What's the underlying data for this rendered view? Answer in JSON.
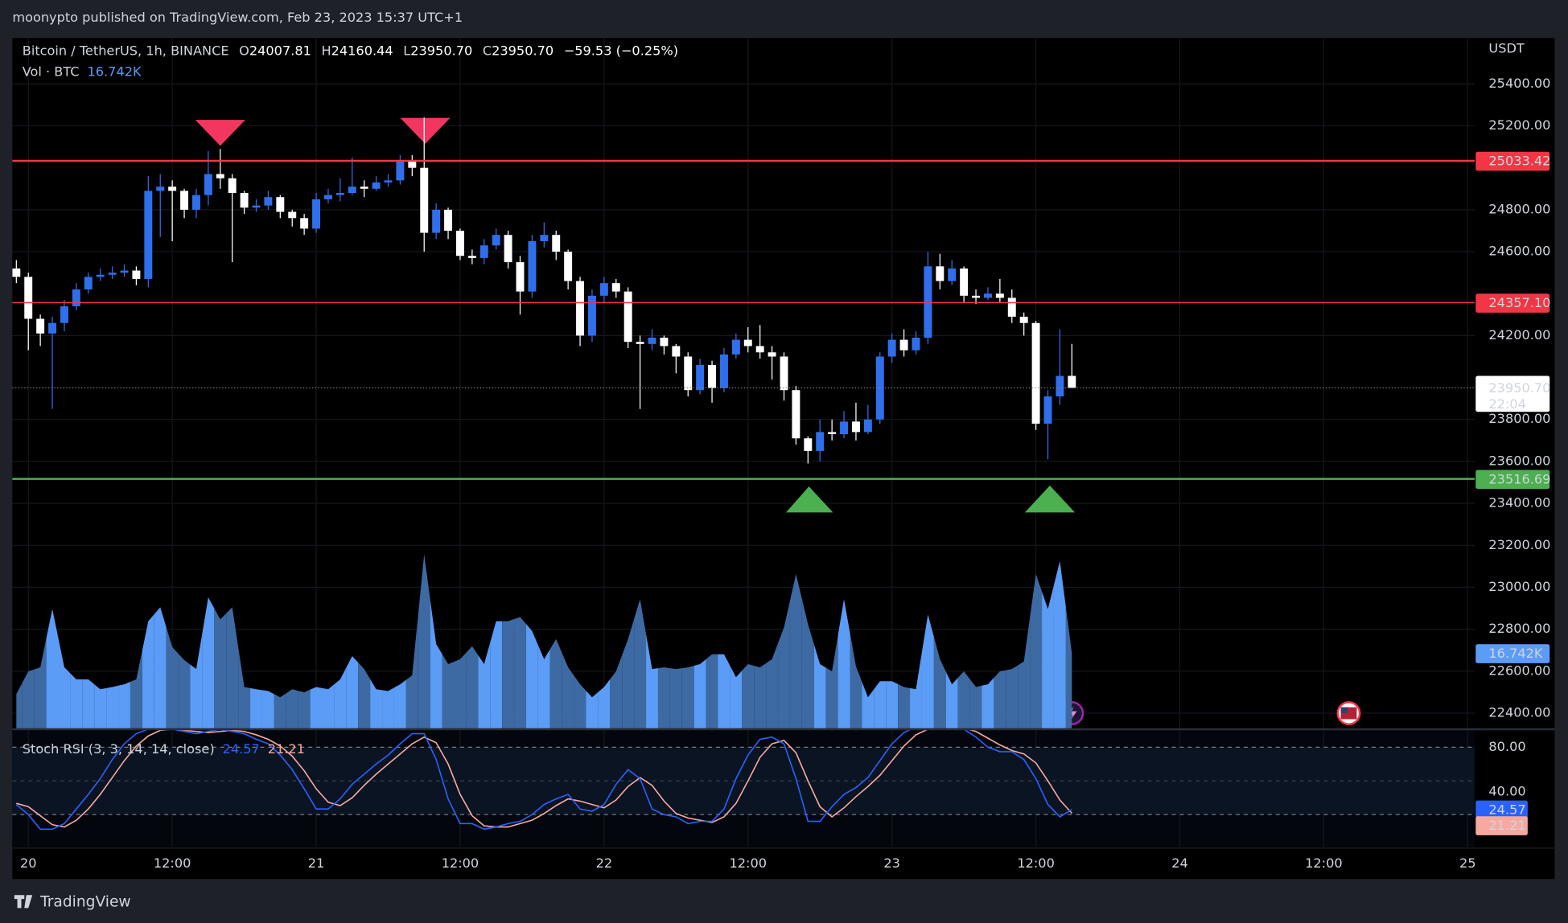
{
  "header": {
    "publisher": "moonypto published on TradingView.com, Feb 23, 2023 15:37 UTC+1"
  },
  "footer": {
    "brand": "TradingView"
  },
  "chart_data": [
    {
      "type": "candlestick",
      "title": "Bitcoin / TetherUS, 1h, BINANCE",
      "y_axis_label": "USDT",
      "legend_keys": [
        "O",
        "H",
        "L",
        "C"
      ],
      "change": "−59.53 (−0.25%)",
      "last_low_label": "23950.70",
      "last_close_label": "23950.70",
      "countdown": "22:04",
      "up_color": "#2f6fec",
      "down_color": "#ffffff",
      "grid": true,
      "x": [
        -1,
        0,
        1,
        2,
        3,
        4,
        5,
        6,
        7,
        8,
        9,
        10,
        11,
        12,
        13,
        14,
        15,
        16,
        17,
        18,
        19,
        20,
        21,
        22,
        23,
        24,
        25,
        26,
        27,
        28,
        29,
        30,
        31,
        32,
        33,
        34,
        35,
        36,
        37,
        38,
        39,
        40,
        41,
        42,
        43,
        44,
        45,
        46,
        47,
        48,
        49,
        50,
        51,
        52,
        53,
        54,
        55,
        56,
        57,
        58,
        59,
        60,
        61,
        62,
        63,
        64,
        65,
        66,
        67,
        68,
        69,
        70,
        71,
        72,
        73,
        74,
        75,
        76,
        77,
        78,
        79,
        80,
        81,
        82,
        83,
        84,
        85,
        86,
        87
      ],
      "open": [
        24520,
        24480,
        24280,
        24210,
        24260,
        24340,
        24420,
        24480,
        24490,
        24500,
        24510,
        24470,
        24890,
        24910,
        24890,
        24800,
        24870,
        24970,
        24950,
        24880,
        24810,
        24820,
        24860,
        24790,
        24760,
        24710,
        24850,
        24870,
        24880,
        24910,
        24900,
        24930,
        24940,
        25030,
        25000,
        24690,
        24800,
        24700,
        24580,
        24570,
        24630,
        24680,
        24550,
        24410,
        24650,
        24680,
        24600,
        24460,
        24200,
        24390,
        24450,
        24410,
        24170,
        24160,
        24190,
        24150,
        24100,
        23940,
        24060,
        23950,
        24110,
        24180,
        24150,
        24120,
        24100,
        23940,
        23710,
        23650,
        23740,
        23730,
        23790,
        23740,
        23800,
        24100,
        24180,
        24130,
        24190,
        24530,
        24460,
        24520,
        24390,
        24380,
        24400,
        24380,
        24290,
        24260,
        23780,
        23910,
        24007.81
      ],
      "high": [
        24560,
        24500,
        24300,
        24290,
        24370,
        24450,
        24500,
        24520,
        24530,
        24540,
        24530,
        24960,
        24970,
        24940,
        24900,
        24900,
        25080,
        25090,
        24970,
        24890,
        24850,
        24890,
        24870,
        24800,
        24780,
        24880,
        24900,
        24950,
        25050,
        24940,
        24960,
        24970,
        25060,
        25060,
        25240,
        24830,
        24810,
        24710,
        24610,
        24660,
        24710,
        24700,
        24580,
        24680,
        24740,
        24700,
        24610,
        24480,
        24420,
        24480,
        24470,
        24430,
        24200,
        24230,
        24200,
        24160,
        24120,
        24090,
        24080,
        24140,
        24210,
        24240,
        24250,
        24150,
        24120,
        23960,
        23720,
        23800,
        23800,
        23840,
        23880,
        23870,
        24120,
        24210,
        24230,
        24220,
        24600,
        24590,
        24560,
        24530,
        24420,
        24430,
        24470,
        24420,
        24310,
        24270,
        23940,
        24230,
        24160.44
      ],
      "low": [
        24450,
        24130,
        24150,
        23850,
        24220,
        24320,
        24400,
        24460,
        24470,
        24480,
        24440,
        24430,
        24670,
        24650,
        24760,
        24760,
        24820,
        24900,
        24550,
        24780,
        24790,
        24800,
        24760,
        24720,
        24680,
        24690,
        24830,
        24840,
        24870,
        24860,
        24890,
        24910,
        24920,
        24960,
        24600,
        24660,
        24660,
        24560,
        24540,
        24540,
        24610,
        24520,
        24300,
        24380,
        24620,
        24560,
        24420,
        24150,
        24170,
        24360,
        24380,
        24140,
        23850,
        24130,
        24110,
        24020,
        23910,
        23920,
        23880,
        23930,
        24090,
        24120,
        24090,
        23990,
        23890,
        23680,
        23590,
        23600,
        23700,
        23710,
        23700,
        23730,
        23780,
        24070,
        24100,
        24110,
        24160,
        24420,
        24440,
        24360,
        24350,
        24370,
        24360,
        24260,
        24200,
        23750,
        23610,
        23870,
        23950.7
      ],
      "close": [
        24480,
        24280,
        24210,
        24260,
        24340,
        24420,
        24480,
        24490,
        24500,
        24510,
        24470,
        24890,
        24910,
        24890,
        24800,
        24870,
        24970,
        24950,
        24880,
        24810,
        24820,
        24860,
        24790,
        24760,
        24710,
        24850,
        24870,
        24880,
        24910,
        24900,
        24930,
        24940,
        25030,
        25000,
        24690,
        24800,
        24700,
        24580,
        24570,
        24630,
        24680,
        24550,
        24410,
        24650,
        24680,
        24600,
        24460,
        24200,
        24390,
        24450,
        24410,
        24170,
        24160,
        24190,
        24150,
        24100,
        23940,
        24060,
        23950,
        24110,
        24180,
        24150,
        24120,
        24100,
        23940,
        23710,
        23650,
        23740,
        23730,
        23790,
        23740,
        23800,
        24100,
        24180,
        24130,
        24190,
        24530,
        24460,
        24520,
        24390,
        24380,
        24400,
        24380,
        24290,
        24260,
        23780,
        23910,
        24007.81,
        23950.7
      ],
      "ylim": [
        22328,
        25619
      ],
      "yticks": [
        {
          "value": 25400,
          "label": "25400.00"
        },
        {
          "value": 25200,
          "label": "25200.00"
        },
        {
          "value": 24800,
          "label": "24800.00"
        },
        {
          "value": 24600,
          "label": "24600.00"
        },
        {
          "value": 24200,
          "label": "24200.00"
        },
        {
          "value": 23800,
          "label": "23800.00"
        },
        {
          "value": 23600,
          "label": "23600.00"
        },
        {
          "value": 23400,
          "label": "23400.00"
        },
        {
          "value": 23200,
          "label": "23200.00"
        },
        {
          "value": 23000,
          "label": "23000.00"
        },
        {
          "value": 22800,
          "label": "22800.00"
        },
        {
          "value": 22600,
          "label": "22600.00"
        },
        {
          "value": 22400,
          "label": "22400.00"
        }
      ],
      "xlim": [
        -1.333,
        120.583
      ],
      "xticks": [
        {
          "value": 0,
          "label": "20"
        },
        {
          "value": 12,
          "label": "12:00"
        },
        {
          "value": 24,
          "label": "21"
        },
        {
          "value": 36,
          "label": "12:00"
        },
        {
          "value": 48,
          "label": "22"
        },
        {
          "value": 60,
          "label": "12:00"
        },
        {
          "value": 72,
          "label": "23"
        },
        {
          "value": 84,
          "label": "12:00"
        },
        {
          "value": 96,
          "label": "24"
        },
        {
          "value": 108,
          "label": "12:00"
        },
        {
          "value": 120,
          "label": "25"
        }
      ],
      "levels": [
        {
          "value": 25033.42,
          "color": "#f23645"
        },
        {
          "value": 24357.1,
          "label": "24357.10",
          "color": "#f23645"
        },
        {
          "value": 23516.69,
          "color": "#4caf50"
        }
      ]
    },
    {
      "type": "area",
      "title": "Vol · BTC",
      "up_color": "#5b9cf6",
      "down_color": "#3e6aa3",
      "label_color": "#5b9cf6",
      "values": [
        7600,
        12700,
        13600,
        26600,
        13600,
        10900,
        10900,
        8700,
        9200,
        9800,
        10900,
        23900,
        27000,
        18100,
        15200,
        13200,
        29200,
        24300,
        27000,
        9200,
        8700,
        8300,
        6900,
        8700,
        8000,
        9200,
        8700,
        10900,
        16100,
        13200,
        8700,
        8300,
        9800,
        11800,
        38800,
        18800,
        14300,
        15400,
        18300,
        14300,
        23900,
        23900,
        24800,
        21700,
        15400,
        19900,
        13600,
        9800,
        6900,
        9200,
        12700,
        19900,
        28800,
        13200,
        13600,
        13200,
        13600,
        14300,
        16500,
        16500,
        11400,
        14300,
        13600,
        15400,
        22500,
        34400,
        23200,
        14300,
        12700,
        28800,
        13800,
        6900,
        10500,
        10500,
        9200,
        8700,
        25400,
        15400,
        9800,
        12700,
        9200,
        9800,
        12700,
        13200,
        14900,
        34400,
        26600,
        37300,
        16742
      ],
      "last_label": "16.742K"
    },
    {
      "type": "line",
      "title": "Stoch RSI (3, 3, 14, 14, close)",
      "ylim": [
        -8.9,
        95.1
      ],
      "yticks": [
        {
          "value": 80,
          "label": "80.00"
        },
        {
          "value": 40,
          "label": "40.00"
        }
      ],
      "bands": [
        80,
        50,
        20
      ],
      "series": [
        {
          "color": "#2962ff",
          "values": [
            29,
            20,
            7,
            7,
            12,
            25,
            38,
            52,
            69,
            83,
            92,
            96,
            96,
            96,
            94,
            92,
            94,
            96,
            94,
            92,
            87,
            83,
            73,
            60,
            43,
            25,
            25,
            34,
            47,
            56,
            65,
            73,
            83,
            92,
            92,
            69,
            34,
            12,
            12,
            7,
            9,
            12,
            14,
            20,
            29,
            34,
            38,
            25,
            23,
            29,
            47,
            60,
            52,
            25,
            20,
            18,
            12,
            14,
            14,
            25,
            52,
            73,
            87,
            89,
            83,
            52,
            14,
            14,
            27,
            38,
            44,
            53,
            68,
            83,
            93,
            98,
            98,
            98,
            98,
            96,
            89,
            80,
            76,
            76,
            69,
            52,
            29,
            18,
            24.57
          ]
        },
        {
          "color": "#f7a9a0",
          "values": [
            30,
            27,
            19,
            11,
            9,
            15,
            25,
            38,
            53,
            68,
            81,
            90,
            95,
            96,
            95,
            94,
            93,
            94,
            95,
            94,
            91,
            87,
            81,
            72,
            59,
            43,
            31,
            28,
            35,
            46,
            56,
            65,
            74,
            83,
            89,
            84,
            65,
            38,
            19,
            10,
            9,
            9,
            12,
            15,
            21,
            28,
            34,
            32,
            29,
            26,
            33,
            45,
            53,
            46,
            32,
            21,
            17,
            15,
            13,
            18,
            30,
            50,
            71,
            83,
            86,
            75,
            50,
            27,
            18,
            26,
            36,
            45,
            55,
            68,
            81,
            91,
            96,
            98,
            98,
            97,
            94,
            88,
            82,
            77,
            74,
            66,
            50,
            33,
            21.21
          ]
        }
      ]
    }
  ]
}
